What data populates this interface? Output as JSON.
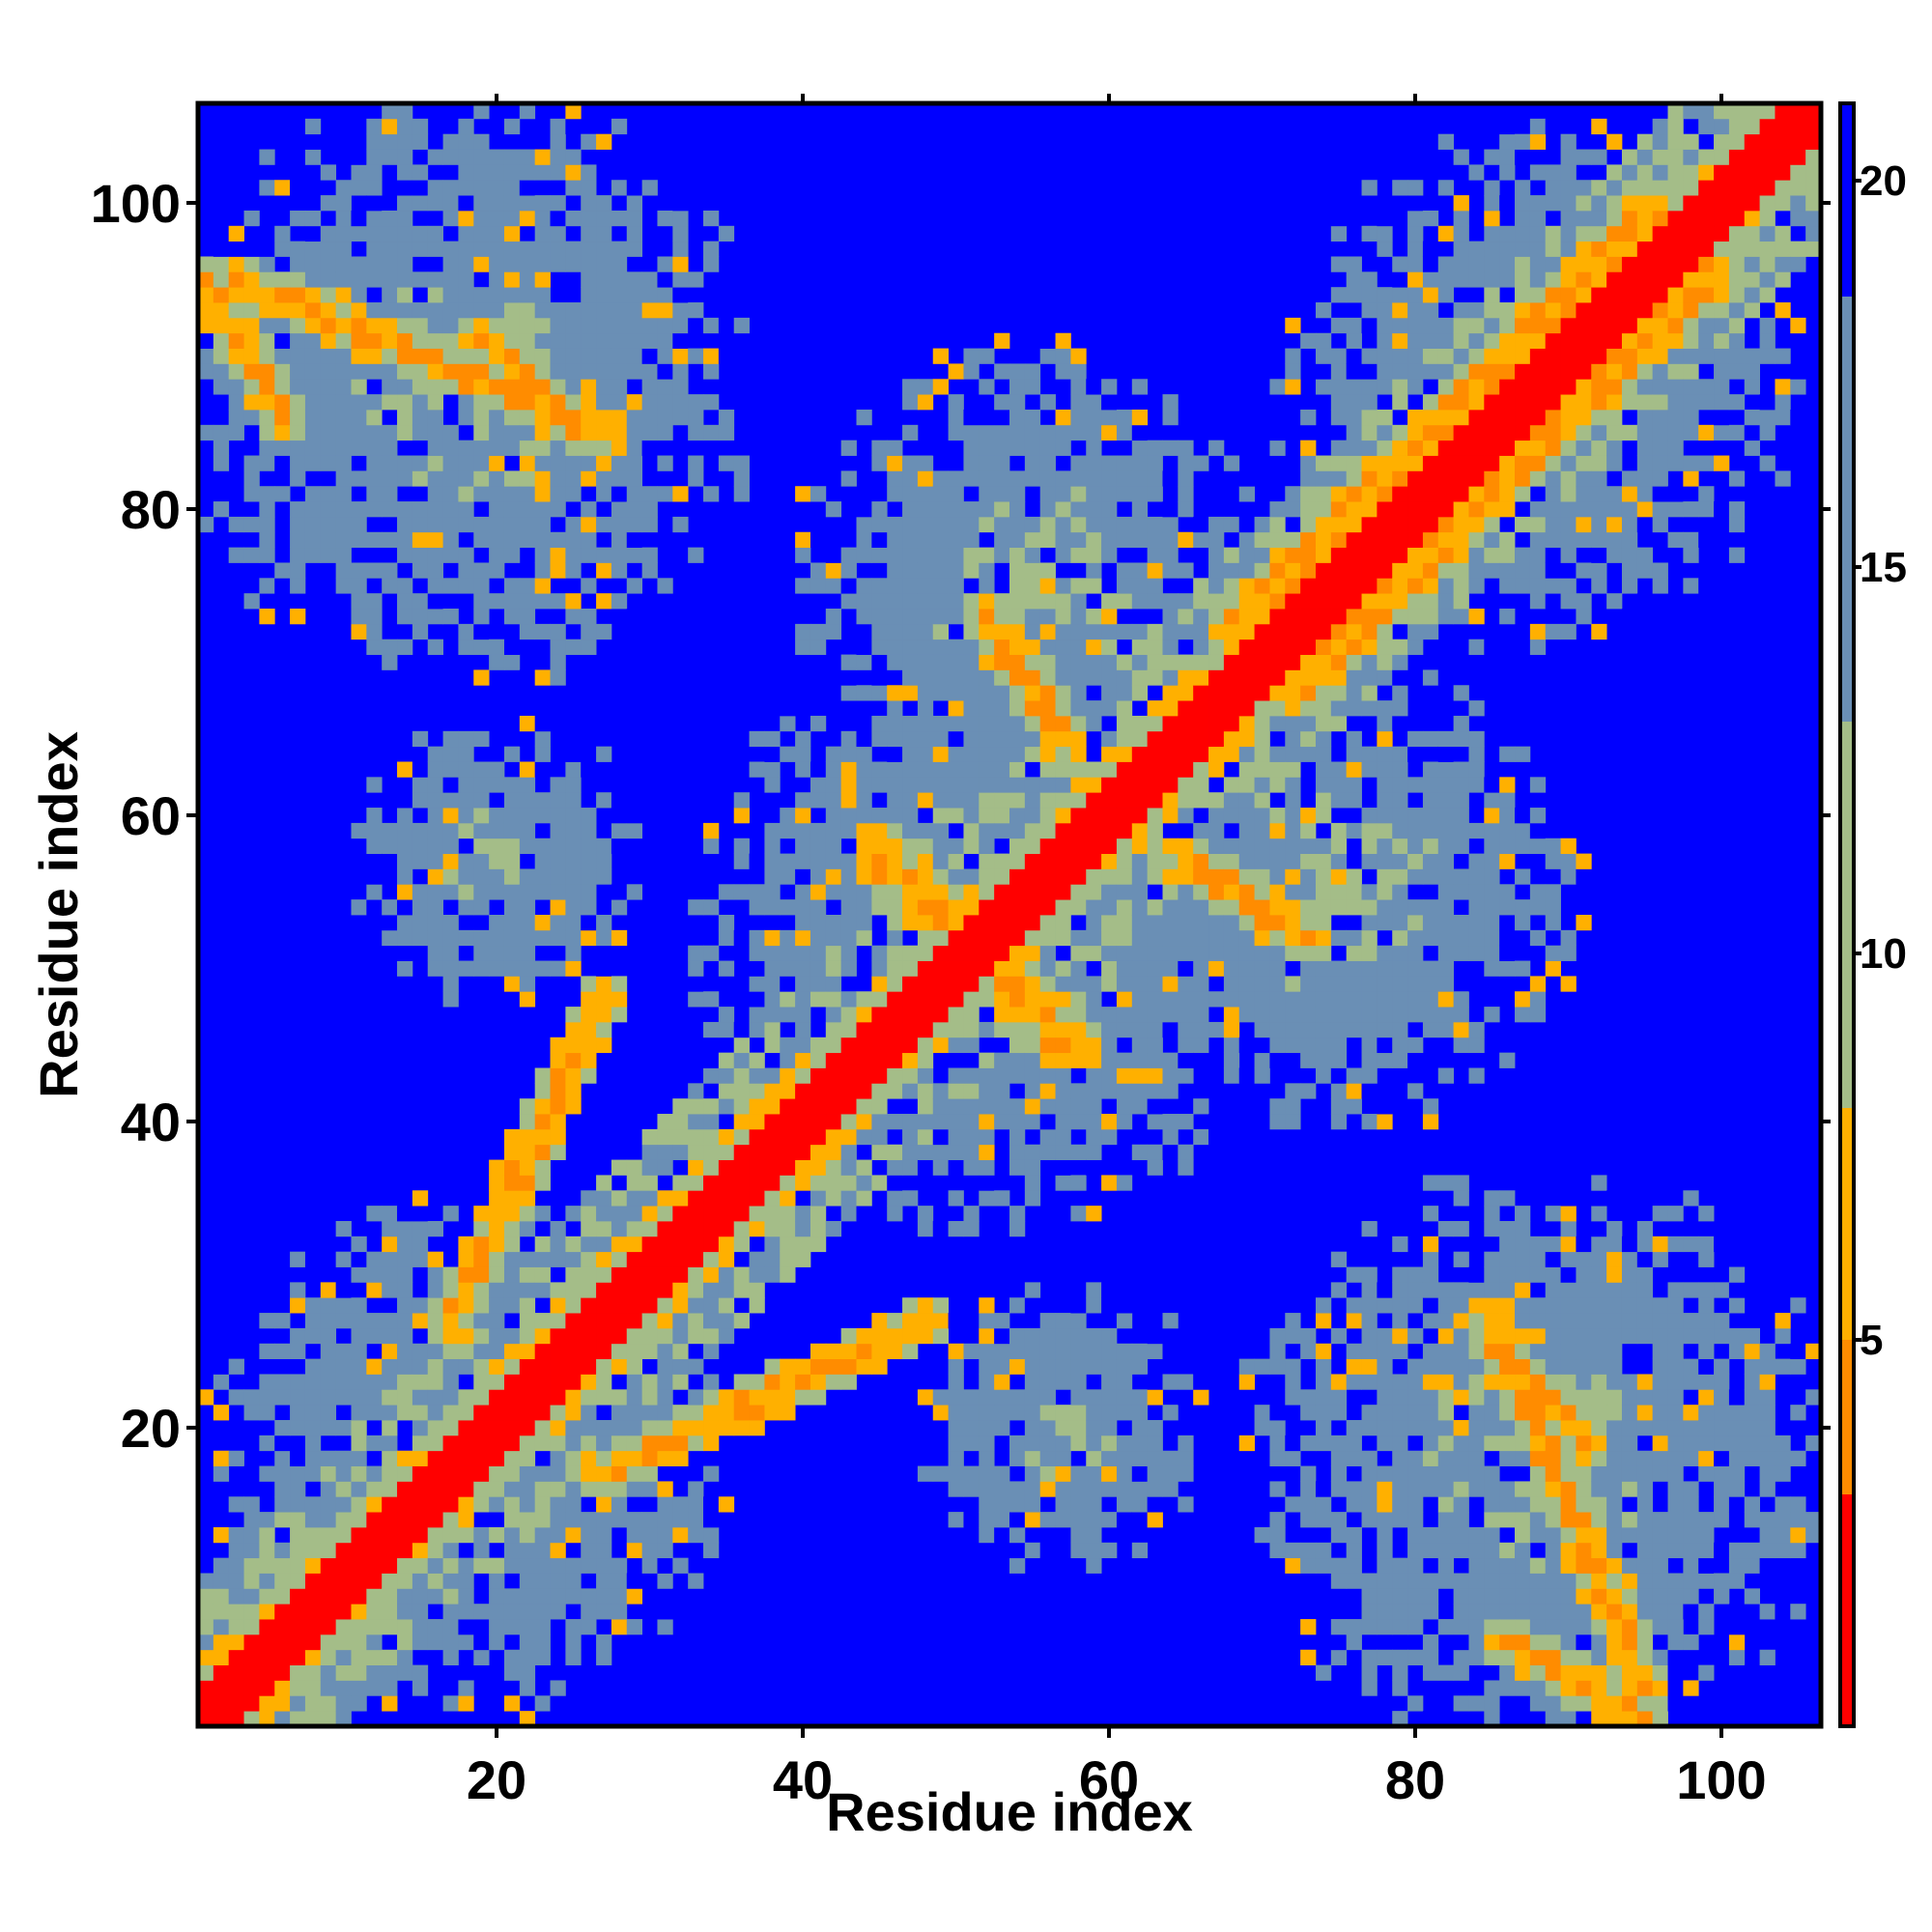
{
  "chart_data": {
    "type": "heatmap",
    "title": "",
    "xlabel": "Residue index",
    "ylabel": "Residue index",
    "x_range": [
      1,
      106
    ],
    "y_range": [
      1,
      106
    ],
    "x_ticks": [
      20,
      40,
      60,
      80,
      100
    ],
    "y_ticks": [
      20,
      40,
      60,
      80,
      100
    ],
    "colorbar": {
      "ticks": [
        5,
        10,
        15,
        20
      ],
      "range": [
        0,
        21
      ],
      "colors": [
        "#ff0000",
        "#ff8c00",
        "#9db986",
        "#5a87b8",
        "#0000ff"
      ]
    },
    "grid": false,
    "description_note": null,
    "colors": {
      "background_blue": "#0000ff",
      "contact_red": "#ff0000",
      "orange": "#ff8c00",
      "gold": "#ffb000",
      "sage": "#a4bd88",
      "greyblue": "#6a8fb5",
      "frame": "#000000"
    },
    "features": {
      "diagonal": {
        "from": [
          1,
          1
        ],
        "to": [
          106,
          106
        ],
        "min_distance": 0
      },
      "antiparallel_contacts": [
        {
          "from": [
            27,
            17
          ],
          "to": [
            48,
            27
          ],
          "min_distance": 5
        },
        {
          "from": [
            3,
            95
          ],
          "to": [
            27,
            85
          ],
          "min_distance": 5
        },
        {
          "from": [
            45,
            58
          ],
          "to": [
            57,
            45
          ],
          "min_distance": 5
        },
        {
          "from": [
            65,
            57
          ],
          "to": [
            73,
            52
          ],
          "min_distance": 6
        },
        {
          "from": [
            85,
            26
          ],
          "to": [
            91,
            19
          ],
          "min_distance": 5
        },
        {
          "from": [
            86,
            6
          ],
          "to": [
            95,
            1
          ],
          "min_distance": 6
        }
      ],
      "parallel_contacts": [
        {
          "from": [
            68,
            72
          ],
          "to": [
            96,
            100
          ],
          "min_distance": 5
        },
        {
          "from": [
            72,
            68
          ],
          "to": [
            100,
            96
          ],
          "min_distance": 5
        }
      ],
      "clusters": [
        {
          "center": [
            18,
            18
          ],
          "radius": 14
        },
        {
          "center": [
            18,
            88
          ],
          "radius": 16
        },
        {
          "center": [
            88,
            18
          ],
          "radius": 16
        },
        {
          "center": [
            88,
            88
          ],
          "radius": 14
        },
        {
          "center": [
            52,
            52
          ],
          "radius": 16
        },
        {
          "center": [
            55,
            75
          ],
          "radius": 13
        },
        {
          "center": [
            75,
            55
          ],
          "radius": 13
        },
        {
          "center": [
            57,
            20
          ],
          "radius": 8
        },
        {
          "center": [
            20,
            57
          ],
          "radius": 8
        }
      ]
    }
  }
}
